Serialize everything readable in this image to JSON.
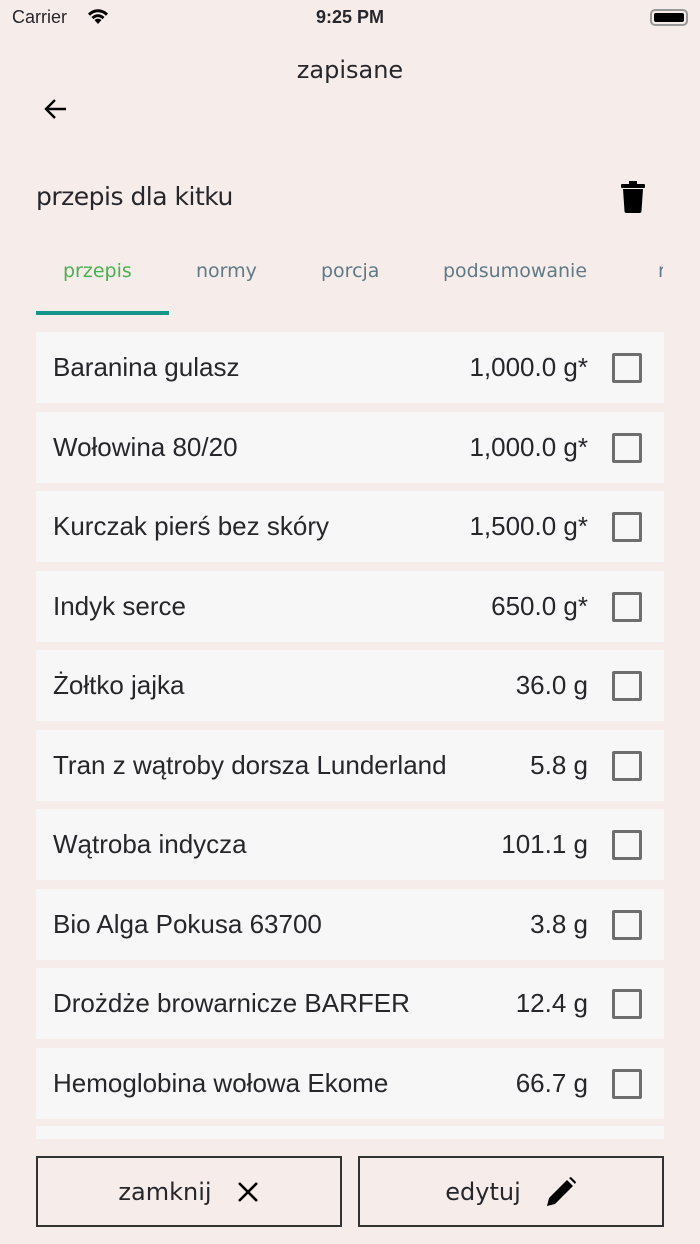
{
  "status": {
    "carrier": "Carrier",
    "time": "9:25 PM"
  },
  "header": {
    "title": "zapisane"
  },
  "recipe": {
    "name": "przepis dla kitku"
  },
  "tabs": [
    {
      "label": "przepis",
      "active": true
    },
    {
      "label": "normy"
    },
    {
      "label": "porcja"
    },
    {
      "label": "podsumowanie"
    },
    {
      "label": "r"
    }
  ],
  "ingredients": [
    {
      "name": "Baranina gulasz",
      "qty": "1,000.0 g*",
      "checked": false
    },
    {
      "name": "Wołowina 80/20",
      "qty": "1,000.0 g*",
      "checked": false
    },
    {
      "name": "Kurczak pierś bez skóry",
      "qty": "1,500.0 g*",
      "checked": false
    },
    {
      "name": "Indyk serce",
      "qty": "650.0 g*",
      "checked": false
    },
    {
      "name": "Żołtko jajka",
      "qty": "36.0 g",
      "checked": false
    },
    {
      "name": "Tran z wątroby dorsza Lunderland",
      "qty": "5.8 g",
      "checked": false
    },
    {
      "name": "Wątroba indycza",
      "qty": "101.1 g",
      "checked": false
    },
    {
      "name": "Bio Alga Pokusa 63700",
      "qty": "3.8 g",
      "checked": false
    },
    {
      "name": "Drożdże browarnicze BARFER",
      "qty": "12.4 g",
      "checked": false
    },
    {
      "name": "Hemoglobina wołowa Ekome",
      "qty": "66.7 g",
      "checked": false
    }
  ],
  "buttons": {
    "close": "zamknij",
    "edit": "edytuj"
  },
  "colors": {
    "background": "#f6ecea",
    "tab_active": "#4cb050",
    "tab_inactive": "#5f7a87",
    "indicator": "#15968a"
  }
}
